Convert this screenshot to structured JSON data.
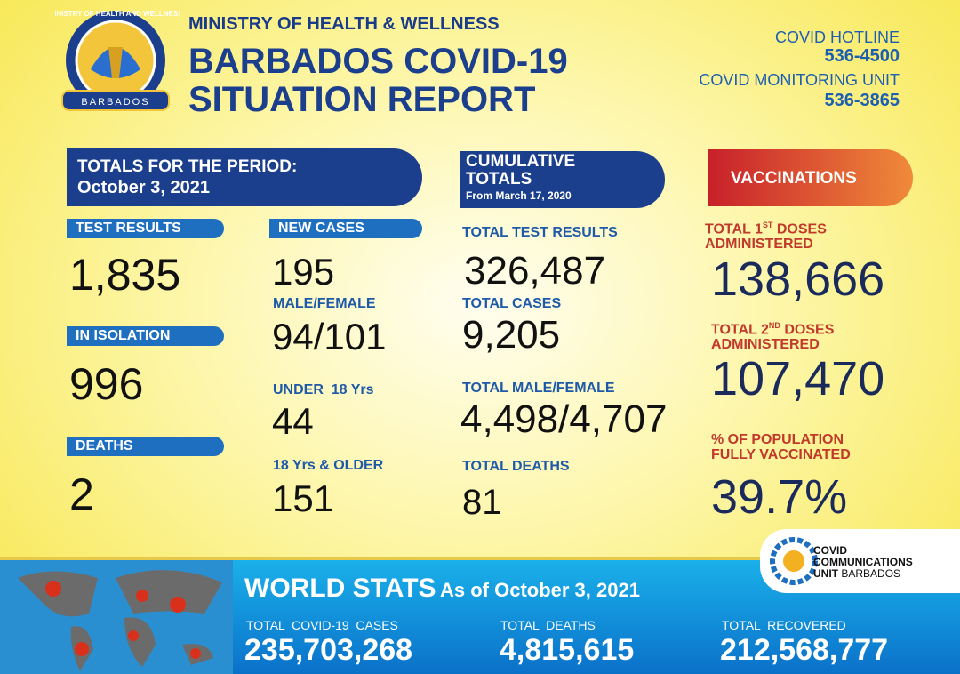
{
  "logo": {
    "ring": "MINISTRY OF HEALTH AND WELLNESS",
    "banner": "BARBADOS"
  },
  "header": {
    "ministry": "MINISTRY OF HEALTH & WELLNESS",
    "title_line1": "BARBADOS COVID-19",
    "title_line2": "SITUATION REPORT"
  },
  "hotlines": [
    {
      "label": "COVID HOTLINE",
      "number": "536-4500"
    },
    {
      "label": "COVID MONITORING UNIT",
      "number": "536-3865"
    }
  ],
  "period": {
    "heading": "TOTALS FOR THE PERIOD:",
    "date": "October 3, 2021",
    "left": [
      {
        "label": "TEST RESULTS",
        "value": "1,835"
      },
      {
        "label": "IN ISOLATION",
        "value": "996"
      },
      {
        "label": "DEATHS",
        "value": "2"
      }
    ],
    "new_cases": {
      "label": "NEW CASES",
      "value": "195",
      "breakdown": [
        {
          "label": "MALE/FEMALE",
          "value": "94/101"
        },
        {
          "label": "UNDER  18 Yrs",
          "value": "44"
        },
        {
          "label": "18 Yrs & OLDER",
          "value": "151"
        }
      ]
    }
  },
  "cumulative": {
    "heading_line1": "CUMULATIVE",
    "heading_line2": "TOTALS",
    "since": "From March 17, 2020",
    "items": [
      {
        "label": "TOTAL TEST RESULTS",
        "value": "326,487"
      },
      {
        "label": "TOTAL CASES",
        "value": "9,205"
      },
      {
        "label": "TOTAL MALE/FEMALE",
        "value": "4,498/4,707"
      },
      {
        "label": "TOTAL DEATHS",
        "value": "81"
      }
    ]
  },
  "vaccinations": {
    "heading": "VACCINATIONS",
    "items": [
      {
        "label_pre": "TOTAL 1",
        "label_sup": "ST",
        "label_post": " DOSES",
        "label_line2": "ADMINISTERED",
        "value": "138,666"
      },
      {
        "label_pre": "TOTAL 2",
        "label_sup": "ND",
        "label_post": " DOSES",
        "label_line2": "ADMINISTERED",
        "value": "107,470"
      },
      {
        "label_pre": "% OF POPULATION",
        "label_sup": "",
        "label_post": "",
        "label_line2": "FULLY VACCINATED",
        "value": "39.7%"
      }
    ]
  },
  "comms": {
    "line1": "COVID",
    "line2": "COMMUNICATIONS",
    "line3_bold": "UNIT",
    "line3": "BARBADOS"
  },
  "world": {
    "title": "WORLD STATS",
    "as_of": "As of October 3, 2021",
    "items": [
      {
        "label": "TOTAL  COVID-19  CASES",
        "value": "235,703,268"
      },
      {
        "label": "TOTAL  DEATHS",
        "value": "4,815,615"
      },
      {
        "label": "TOTAL  RECOVERED",
        "value": "212,568,777"
      }
    ]
  }
}
